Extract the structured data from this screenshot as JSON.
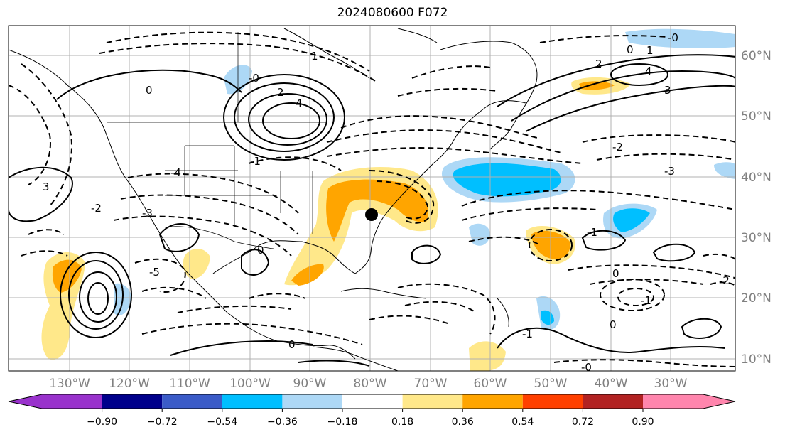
{
  "title": "2024080600 F072",
  "map": {
    "projection": "plate carree",
    "lon_range": [
      -138,
      -17
    ],
    "lat_range": [
      8,
      65
    ],
    "lon_ticks": [
      "130°W",
      "120°W",
      "110°W",
      "100°W",
      "90°W",
      "80°W",
      "70°W",
      "60°W",
      "50°W",
      "40°W",
      "30°W"
    ],
    "lat_ticks": [
      "60°N",
      "50°N",
      "40°N",
      "30°N",
      "20°N",
      "10°N"
    ],
    "gridlines": true,
    "marker": {
      "name": "storm-center",
      "lon": -80.5,
      "lat": 34,
      "color": "#000000"
    },
    "contour_labels": [
      "0",
      "1",
      "2",
      "3",
      "4",
      "-1",
      "-2",
      "-3",
      "-4",
      "-5",
      "-0",
      "0",
      "1",
      "2",
      "4",
      "3",
      "-1",
      "-2",
      "-3",
      "0",
      "0",
      "-0",
      "-1",
      "-2",
      "-1",
      "0",
      "0",
      "-0"
    ]
  },
  "colorbar": {
    "ticks": [
      "−0.90",
      "−0.72",
      "−0.54",
      "−0.36",
      "−0.18",
      "0.18",
      "0.36",
      "0.54",
      "0.72",
      "0.90"
    ],
    "colors": [
      "#9932cc",
      "#00008b",
      "#3a5bc8",
      "#00bfff",
      "#add8f6",
      "#ffffff",
      "#ffe88a",
      "#ffa500",
      "#ff4000",
      "#b22222",
      "#ff85ad"
    ],
    "extend": "both"
  }
}
